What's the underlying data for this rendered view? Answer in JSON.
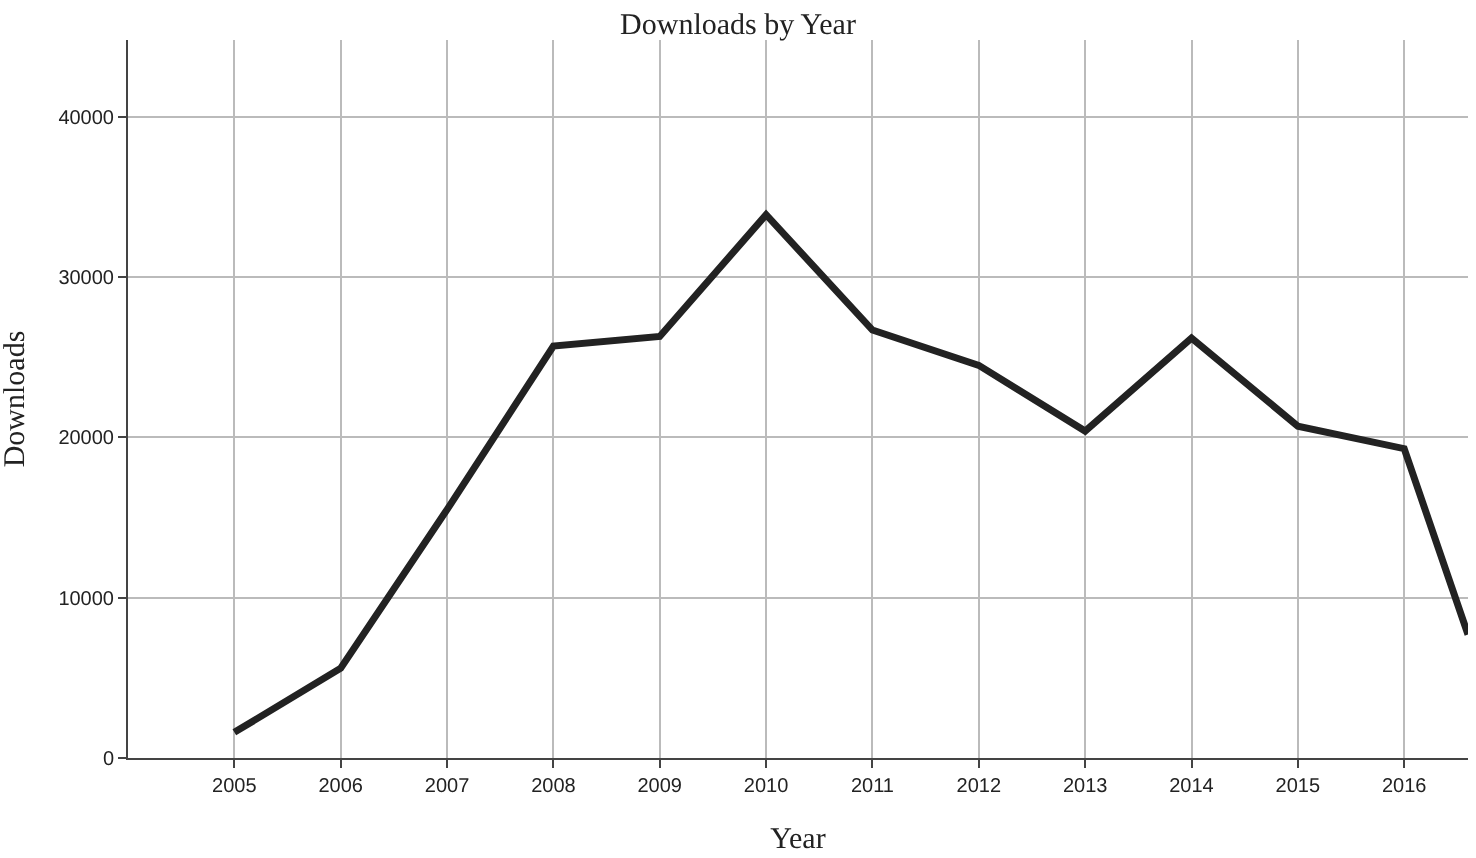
{
  "chart_data": {
    "type": "line",
    "title": "Downloads by Year",
    "xlabel": "Year",
    "ylabel": "Downloads",
    "x": [
      2005,
      2006,
      2007,
      2008,
      2009,
      2010,
      2011,
      2012,
      2013,
      2014,
      2015,
      2016,
      2016.6
    ],
    "series": [
      {
        "color": "#222222",
        "values": [
          1600,
          5600,
          15500,
          25700,
          26300,
          33900,
          26700,
          24500,
          20400,
          26200,
          20700,
          19300,
          7700
        ]
      }
    ],
    "xlim": [
      2004,
      2016.6
    ],
    "xticks": [
      2005,
      2006,
      2007,
      2008,
      2009,
      2010,
      2011,
      2012,
      2013,
      2014,
      2015,
      2016
    ],
    "ylim": [
      0,
      44800
    ],
    "yticks": [
      0,
      10000,
      20000,
      30000,
      40000
    ],
    "grid": true,
    "legend": false
  }
}
